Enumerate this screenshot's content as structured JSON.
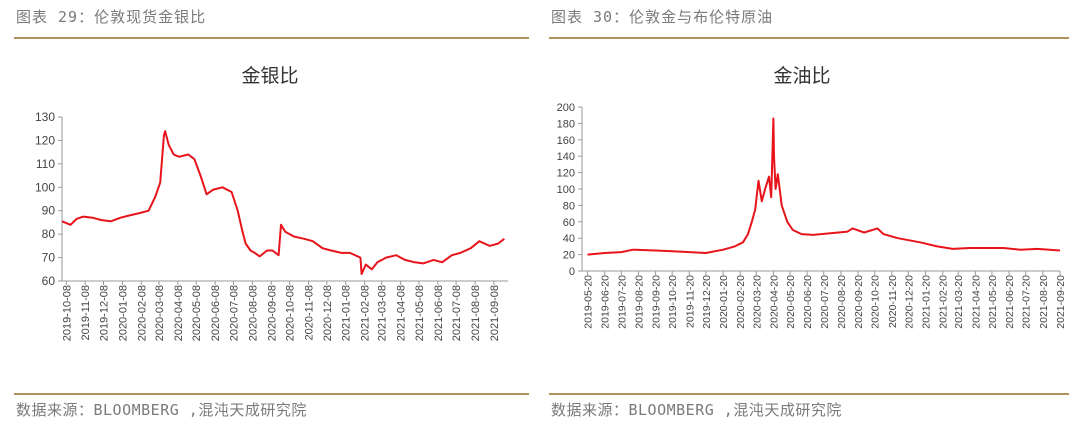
{
  "left_panel": {
    "figure_title": "图表 29：伦敦现货金银比",
    "source": "数据来源：BLOOMBERG ,混沌天成研究院"
  },
  "right_panel": {
    "figure_title": "图表 30：伦敦金与布伦特原油",
    "source": "数据来源：BLOOMBERG ,混沌天成研究院"
  },
  "colors": {
    "line": "#e8141b",
    "rule": "#b0925a",
    "text": "#7a7a7a",
    "axis": "#999999"
  },
  "chart_data": [
    {
      "type": "line",
      "title": "金银比",
      "xlabel": "",
      "ylabel": "",
      "ylim": [
        60,
        130
      ],
      "yticks": [
        60,
        70,
        80,
        90,
        100,
        110,
        120,
        130
      ],
      "x_range": [
        "2019-10-01",
        "2021-10-01"
      ],
      "xticks": [
        "2019-10-08",
        "2019-11-08",
        "2019-12-08",
        "2020-01-08",
        "2020-02-08",
        "2020-03-08",
        "2020-04-08",
        "2020-05-08",
        "2020-06-08",
        "2020-07-08",
        "2020-08-08",
        "2020-09-08",
        "2020-10-08",
        "2020-11-08",
        "2020-12-08",
        "2021-01-08",
        "2021-02-08",
        "2021-03-08",
        "2021-04-08",
        "2021-05-08",
        "2021-06-08",
        "2021-07-08",
        "2021-08-08",
        "2021-09-08"
      ],
      "grid": false,
      "legend": "none",
      "series": [
        {
          "x": [
            "2019-10-01",
            "2019-10-15",
            "2019-10-25",
            "2019-11-05",
            "2019-11-20",
            "2019-12-05",
            "2019-12-20",
            "2020-01-05",
            "2020-01-20",
            "2020-02-05",
            "2020-02-20",
            "2020-03-02",
            "2020-03-10",
            "2020-03-16",
            "2020-03-18",
            "2020-03-24",
            "2020-04-01",
            "2020-04-10",
            "2020-04-25",
            "2020-05-05",
            "2020-05-15",
            "2020-05-25",
            "2020-06-05",
            "2020-06-20",
            "2020-07-05",
            "2020-07-15",
            "2020-07-22",
            "2020-07-28",
            "2020-08-05",
            "2020-08-12",
            "2020-08-20",
            "2020-09-01",
            "2020-09-10",
            "2020-09-20",
            "2020-09-24",
            "2020-10-01",
            "2020-10-15",
            "2020-11-01",
            "2020-11-15",
            "2020-12-01",
            "2020-12-15",
            "2021-01-01",
            "2021-01-15",
            "2021-02-01",
            "2021-02-03",
            "2021-02-10",
            "2021-02-20",
            "2021-03-01",
            "2021-03-15",
            "2021-04-01",
            "2021-04-15",
            "2021-05-01",
            "2021-05-15",
            "2021-06-01",
            "2021-06-15",
            "2021-07-01",
            "2021-07-15",
            "2021-08-01",
            "2021-08-15",
            "2021-09-01",
            "2021-09-15",
            "2021-09-25"
          ],
          "y": [
            85.5,
            84,
            86.5,
            87.5,
            87,
            86,
            85.5,
            87,
            88,
            89,
            90,
            96,
            102,
            122,
            124,
            118,
            114,
            113,
            114,
            112,
            105,
            97,
            99,
            100,
            98,
            90,
            82,
            76,
            73,
            72,
            70.5,
            73,
            73,
            71,
            84,
            81,
            79,
            78,
            77,
            74,
            73,
            72,
            72,
            70,
            63,
            67,
            65,
            68,
            70,
            71,
            69,
            68,
            67.5,
            69,
            68,
            71,
            72,
            74,
            77,
            75,
            76,
            78
          ]
        }
      ]
    },
    {
      "type": "line",
      "title": "金油比",
      "xlabel": "",
      "ylabel": "",
      "ylim": [
        0,
        200
      ],
      "yticks": [
        0,
        20,
        40,
        60,
        80,
        100,
        120,
        140,
        160,
        180,
        200
      ],
      "x_range": [
        "2019-05-10",
        "2021-09-20"
      ],
      "xticks": [
        "2019-05-20",
        "2019-06-20",
        "2019-07-20",
        "2019-08-20",
        "2019-09-20",
        "2019-10-20",
        "2019-11-20",
        "2019-12-20",
        "2020-01-20",
        "2020-02-20",
        "2020-03-20",
        "2020-04-20",
        "2020-05-20",
        "2020-06-20",
        "2020-07-20",
        "2020-08-20",
        "2020-09-20",
        "2020-10-20",
        "2020-11-20",
        "2020-12-20",
        "2021-01-20",
        "2021-02-20",
        "2021-03-20",
        "2021-04-20",
        "2021-05-20",
        "2021-06-20",
        "2021-07-20",
        "2021-08-20",
        "2021-09-20"
      ],
      "grid": false,
      "legend": "none",
      "series": [
        {
          "x": [
            "2019-05-20",
            "2019-06-20",
            "2019-07-20",
            "2019-08-10",
            "2019-09-20",
            "2019-10-20",
            "2019-11-20",
            "2019-12-20",
            "2020-01-20",
            "2020-02-10",
            "2020-02-25",
            "2020-03-05",
            "2020-03-12",
            "2020-03-18",
            "2020-03-24",
            "2020-03-30",
            "2020-04-05",
            "2020-04-12",
            "2020-04-16",
            "2020-04-20",
            "2020-04-21",
            "2020-04-24",
            "2020-04-28",
            "2020-05-05",
            "2020-05-15",
            "2020-05-25",
            "2020-06-10",
            "2020-07-01",
            "2020-08-01",
            "2020-09-01",
            "2020-09-10",
            "2020-10-01",
            "2020-10-25",
            "2020-11-05",
            "2020-12-01",
            "2021-01-10",
            "2021-02-10",
            "2021-03-10",
            "2021-04-10",
            "2021-05-10",
            "2021-06-10",
            "2021-07-10",
            "2021-08-10",
            "2021-09-20"
          ],
          "y": [
            20,
            22,
            23,
            26,
            25,
            24,
            23,
            22,
            26,
            30,
            35,
            45,
            60,
            75,
            110,
            85,
            100,
            115,
            90,
            186,
            140,
            100,
            118,
            80,
            60,
            50,
            45,
            44,
            46,
            48,
            52,
            47,
            52,
            45,
            40,
            35,
            30,
            27,
            28,
            28,
            28,
            26,
            27,
            25
          ]
        }
      ]
    }
  ]
}
